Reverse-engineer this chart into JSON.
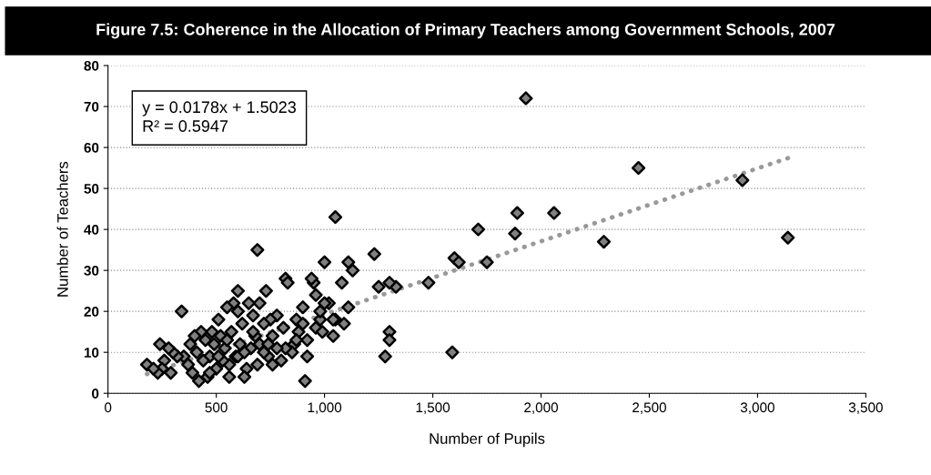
{
  "chart_data": {
    "type": "scatter",
    "title": "Figure 7.5: Coherence in the Allocation of Primary Teachers among Government Schools, 2007",
    "xlabel": "Number of Pupils",
    "ylabel": "Number of Teachers",
    "annotations": [
      "y = 0.0178x + 1.5023\nR² = 0.5947"
    ],
    "series": [
      {
        "color": "#808080",
        "marker": "diamond",
        "x": [
          1930,
          2450,
          2930,
          3140,
          2290,
          2060,
          1890,
          1880,
          1710,
          1600,
          1620,
          1750,
          1480,
          1590,
          1330,
          1300,
          1250,
          1300,
          1300,
          1280,
          1230,
          1110,
          1130,
          1050,
          1000,
          1080,
          1110,
          1090,
          1050,
          1040,
          1020,
          1000,
          980,
          960,
          950,
          940,
          960,
          980,
          920,
          920,
          910,
          900,
          880,
          870,
          860,
          850,
          820,
          830,
          810,
          800,
          780,
          760,
          750,
          740,
          730,
          720,
          700,
          690,
          680,
          670,
          660,
          650,
          640,
          630,
          620,
          610,
          600,
          590,
          580,
          570,
          560,
          550,
          540,
          530,
          520,
          510,
          500,
          490,
          480,
          470,
          460,
          450,
          440,
          430,
          420,
          410,
          400,
          390,
          380,
          370,
          340,
          350,
          320,
          300,
          290,
          280,
          260,
          250,
          240,
          230,
          180,
          210,
          760,
          690,
          700,
          740,
          600,
          550,
          630,
          670,
          820,
          780,
          870,
          900,
          990,
          470,
          510,
          560,
          600,
          720,
          1040
        ],
        "values": [
          72,
          55,
          52,
          38,
          37,
          44,
          44,
          39,
          40,
          33,
          32,
          32,
          27,
          10,
          26,
          27,
          26,
          15,
          13,
          9,
          34,
          32,
          30,
          43,
          32,
          27,
          21,
          17,
          18,
          14,
          22,
          22,
          18,
          16,
          27,
          28,
          24,
          20,
          13,
          9,
          3,
          21,
          15,
          18,
          12,
          10,
          28,
          27,
          16,
          8,
          19,
          14,
          18,
          9,
          25,
          17,
          22,
          35,
          14,
          19,
          11,
          22,
          6,
          4,
          17,
          12,
          20,
          9,
          22,
          15,
          7,
          21,
          11,
          8,
          14,
          18,
          6,
          12,
          15,
          9,
          4,
          13,
          8,
          15,
          3,
          10,
          14,
          5,
          12,
          7,
          20,
          9,
          9,
          10,
          5,
          11,
          8,
          6,
          12,
          5,
          7,
          6,
          7,
          7,
          12,
          12,
          9,
          13,
          10,
          15,
          11,
          11,
          13,
          17,
          15,
          5,
          9,
          4,
          25,
          10,
          18
        ]
      },
      {
        "type": "line",
        "color": "#999999",
        "line_style": "dotted",
        "marker": "none",
        "x": [
          180,
          3140
        ],
        "values": [
          4.7,
          57.4
        ]
      }
    ],
    "xlim": [
      0,
      3500
    ],
    "ylim": [
      0,
      80
    ],
    "xticks": [
      0,
      500,
      {
        "value": 1000,
        "label": "1,000"
      },
      {
        "value": 1500,
        "label": "1,500"
      },
      {
        "value": 2000,
        "label": "2,000"
      },
      {
        "value": 2500,
        "label": "2,500"
      },
      {
        "value": 3000,
        "label": "3,000"
      },
      {
        "value": 3500,
        "label": "3,500"
      }
    ],
    "yticks": [
      0,
      10,
      20,
      30,
      40,
      50,
      60,
      70,
      80
    ],
    "grid": "y",
    "legend": false
  }
}
